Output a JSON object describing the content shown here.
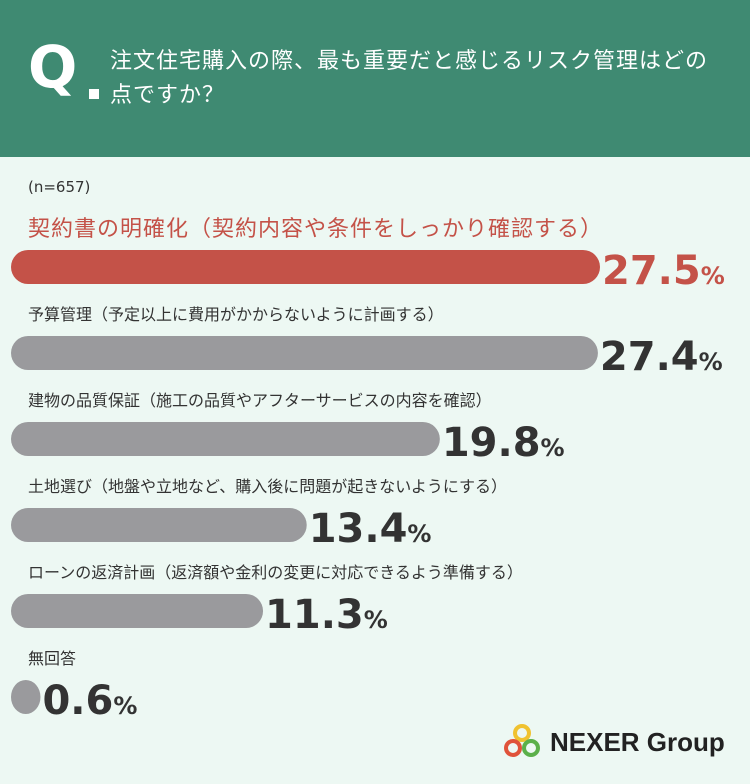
{
  "header": {
    "q_mark": "Q",
    "question": "注文住宅購入の際、最も重要だと感じるリスク管理はどの点ですか？"
  },
  "sample_size": "(n=657)",
  "chart_data": {
    "type": "bar",
    "orientation": "horizontal",
    "title": "注文住宅購入の際、最も重要だと感じるリスク管理はどの点ですか？",
    "categories": [
      "契約書の明確化（契約内容や条件をしっかり確認する）",
      "予算管理（予定以上に費用がかからないように計画する）",
      "建物の品質保証（施工の品質やアフターサービスの内容を確認）",
      "土地選び（地盤や立地など、購入後に問題が起きないようにする）",
      "ローンの返済計画（返済額や金利の変更に対応できるよう準備する）",
      "無回答"
    ],
    "values": [
      27.5,
      27.4,
      19.8,
      13.4,
      11.3,
      0.6
    ],
    "value_labels": [
      "27.5",
      "27.4",
      "19.8",
      "13.4",
      "11.3",
      "0.6"
    ],
    "unit": "%",
    "xlim": [
      0,
      27.5
    ],
    "highlight_index": 0,
    "colors": {
      "highlight": "#c45248",
      "normal": "#9a9a9d",
      "text": "#333333"
    }
  },
  "logo": {
    "text": "NEXER Group",
    "icon": "nexer-rings-icon"
  }
}
